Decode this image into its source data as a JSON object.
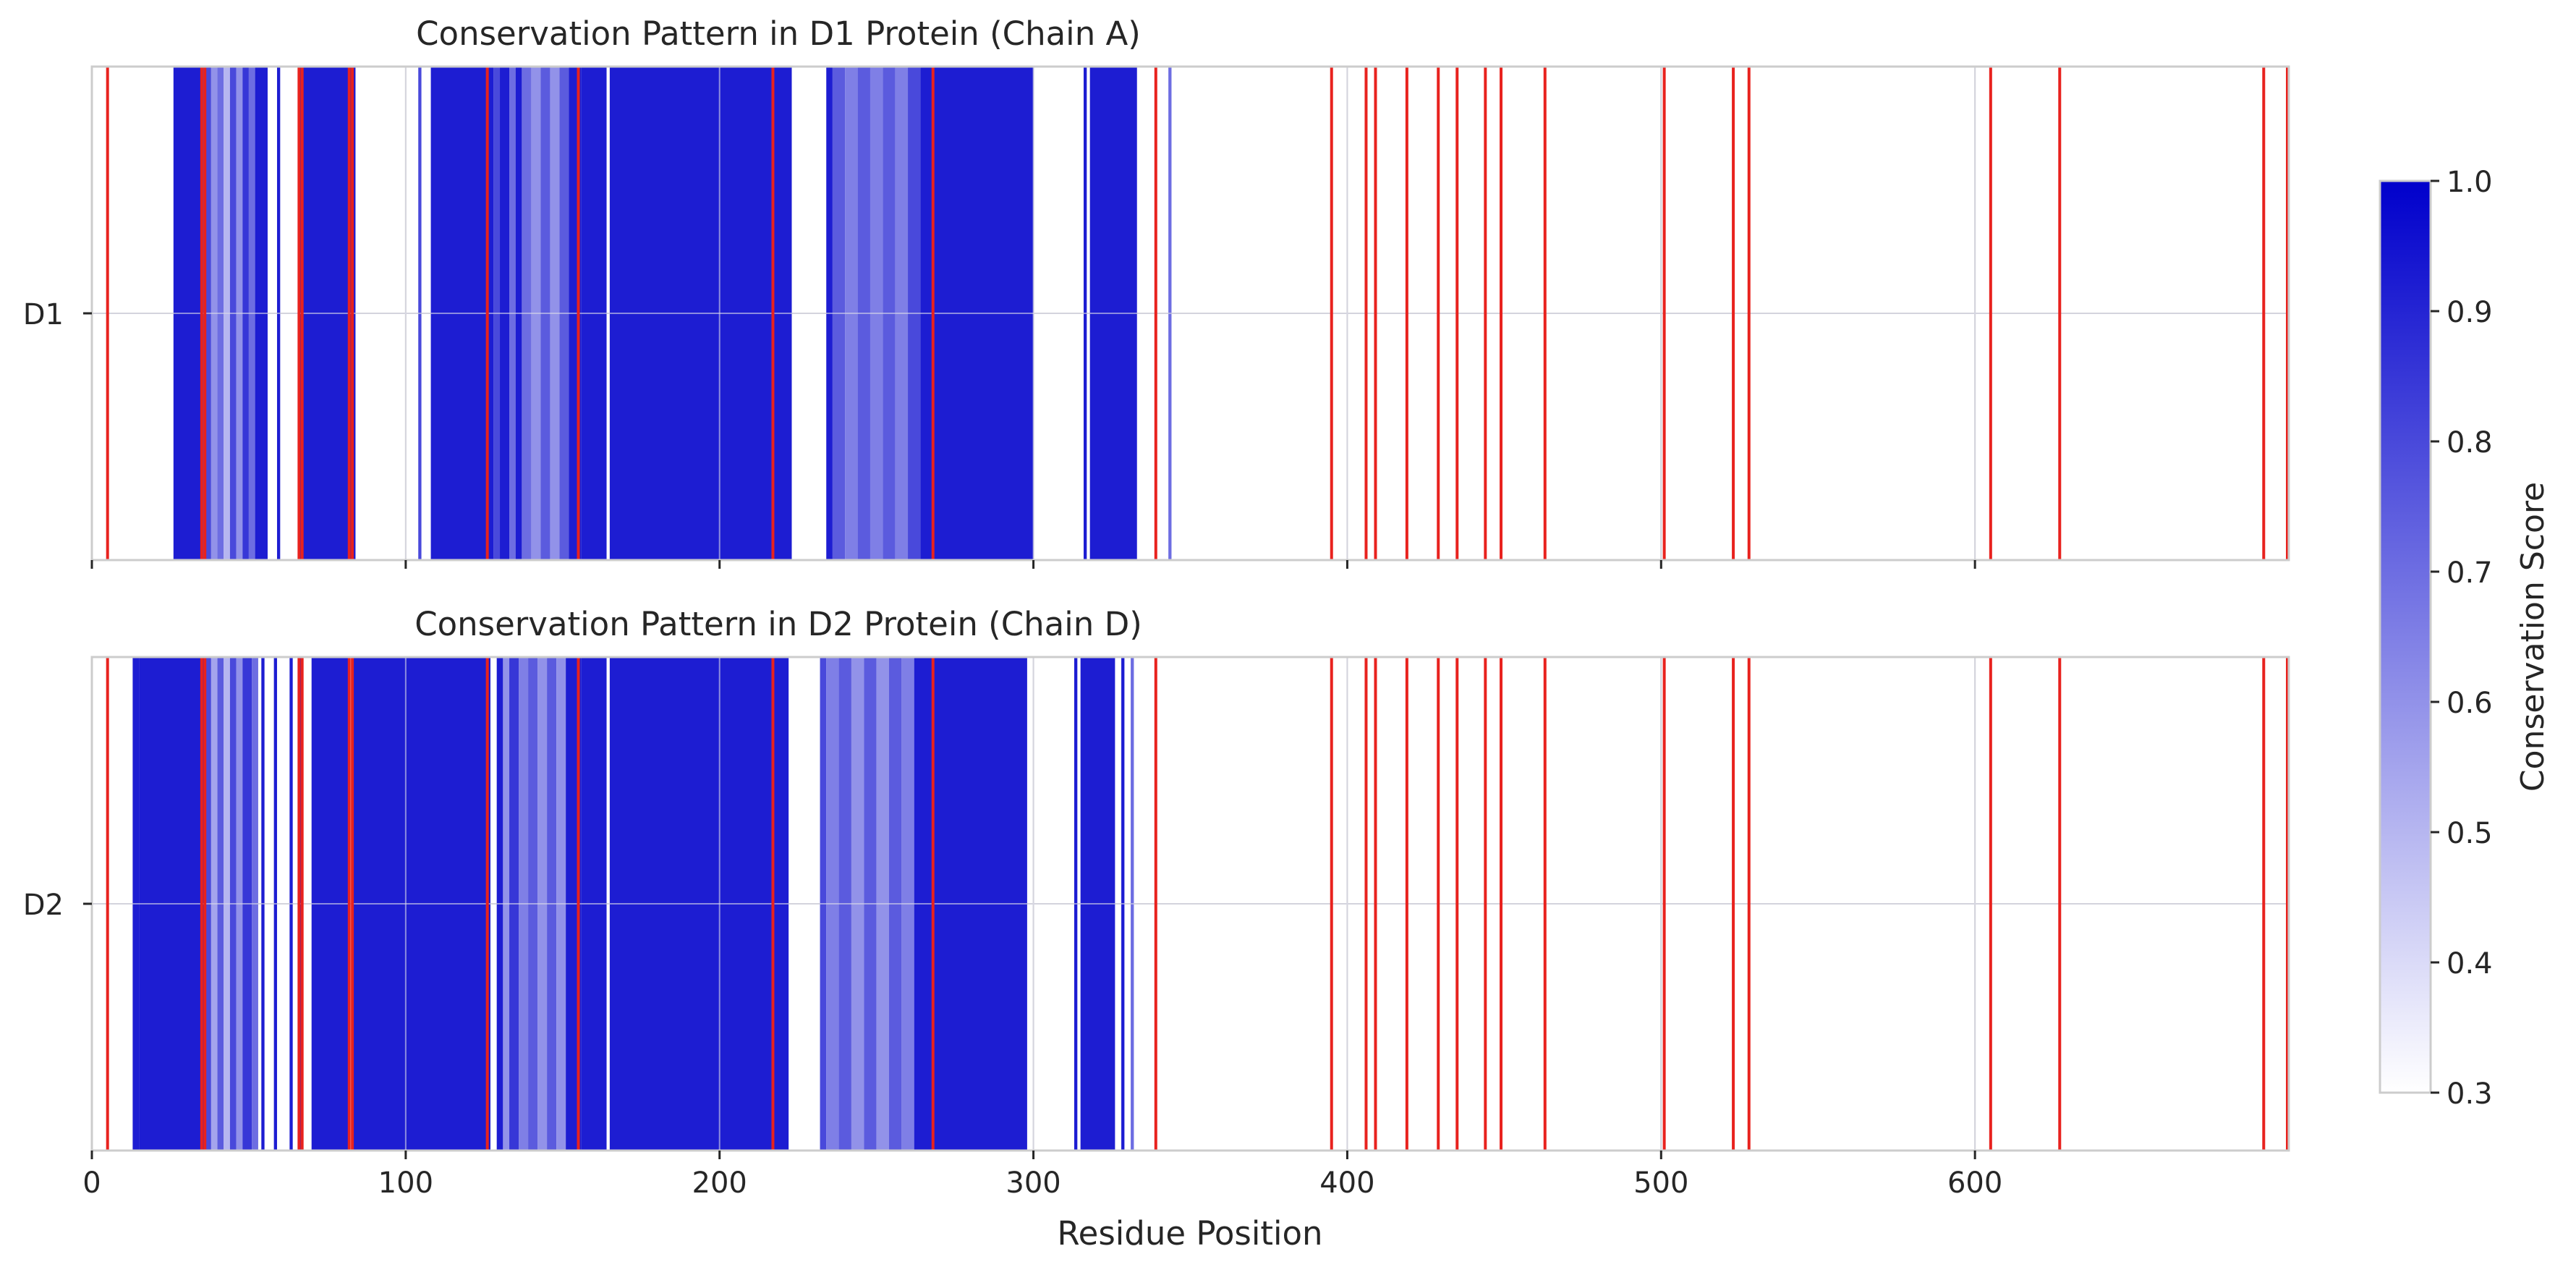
{
  "chart_data": {
    "type": "heatmap",
    "xlabel": "Residue Position",
    "xlim": [
      0,
      700
    ],
    "xticks": [
      0,
      100,
      200,
      300,
      400,
      500,
      600
    ],
    "grid": true,
    "panels": [
      {
        "title": "Conservation Pattern in D1 Protein (Chain A)",
        "row_label": "D1",
        "segments": [
          [
            26,
            35,
            0.92
          ],
          [
            35,
            38,
            0.8
          ],
          [
            38,
            40,
            0.6
          ],
          [
            40,
            42,
            0.7
          ],
          [
            42,
            44,
            0.5
          ],
          [
            44,
            46,
            0.8
          ],
          [
            46,
            48,
            0.6
          ],
          [
            48,
            50,
            0.85
          ],
          [
            50,
            52,
            0.7
          ],
          [
            52,
            56,
            0.92
          ],
          [
            59,
            60,
            0.92
          ],
          [
            66,
            67,
            0.92
          ],
          [
            67,
            84,
            0.92
          ],
          [
            104,
            105,
            0.8
          ],
          [
            108,
            128,
            0.92
          ],
          [
            128,
            130,
            0.8
          ],
          [
            130,
            133,
            0.92
          ],
          [
            133,
            135,
            0.7
          ],
          [
            135,
            137,
            0.92
          ],
          [
            137,
            140,
            0.7
          ],
          [
            140,
            143,
            0.6
          ],
          [
            143,
            146,
            0.75
          ],
          [
            146,
            149,
            0.6
          ],
          [
            149,
            152,
            0.75
          ],
          [
            152,
            156,
            0.92
          ],
          [
            156,
            164,
            0.92
          ],
          [
            165,
            223,
            0.92
          ],
          [
            234,
            236,
            0.92
          ],
          [
            236,
            240,
            0.75
          ],
          [
            240,
            244,
            0.65
          ],
          [
            244,
            248,
            0.75
          ],
          [
            248,
            252,
            0.65
          ],
          [
            252,
            256,
            0.75
          ],
          [
            256,
            260,
            0.65
          ],
          [
            260,
            264,
            0.8
          ],
          [
            264,
            300,
            0.92
          ],
          [
            316,
            317,
            0.92
          ],
          [
            318,
            333,
            0.92
          ],
          [
            343,
            344,
            0.7
          ]
        ],
        "red_lines": [
          5,
          35,
          36,
          66,
          67,
          82,
          83,
          126,
          155,
          217,
          268,
          339,
          395,
          406,
          409,
          419,
          429,
          435,
          444,
          449,
          463,
          501,
          523,
          528,
          605,
          627,
          692,
          700
        ]
      },
      {
        "title": "Conservation Pattern in D2 Protein (Chain D)",
        "row_label": "D2",
        "segments": [
          [
            13,
            15,
            0.92
          ],
          [
            15,
            36,
            0.92
          ],
          [
            36,
            38,
            0.8
          ],
          [
            38,
            40,
            0.55
          ],
          [
            40,
            42,
            0.75
          ],
          [
            42,
            44,
            0.5
          ],
          [
            44,
            46,
            0.8
          ],
          [
            46,
            48,
            0.6
          ],
          [
            48,
            51,
            0.85
          ],
          [
            51,
            53,
            0.7
          ],
          [
            54,
            55,
            0.92
          ],
          [
            58,
            59,
            0.92
          ],
          [
            63,
            64,
            0.92
          ],
          [
            66,
            67,
            0.92
          ],
          [
            70,
            82,
            0.92
          ],
          [
            83,
            127,
            0.92
          ],
          [
            129,
            131,
            0.92
          ],
          [
            131,
            133,
            0.6
          ],
          [
            133,
            136,
            0.85
          ],
          [
            136,
            139,
            0.65
          ],
          [
            139,
            142,
            0.75
          ],
          [
            142,
            145,
            0.6
          ],
          [
            145,
            148,
            0.75
          ],
          [
            148,
            151,
            0.6
          ],
          [
            151,
            156,
            0.92
          ],
          [
            156,
            164,
            0.92
          ],
          [
            165,
            222,
            0.92
          ],
          [
            232,
            234,
            0.8
          ],
          [
            234,
            238,
            0.65
          ],
          [
            238,
            242,
            0.75
          ],
          [
            242,
            246,
            0.6
          ],
          [
            246,
            250,
            0.75
          ],
          [
            250,
            254,
            0.6
          ],
          [
            254,
            258,
            0.75
          ],
          [
            258,
            262,
            0.65
          ],
          [
            262,
            298,
            0.92
          ],
          [
            313,
            314,
            0.92
          ],
          [
            315,
            326,
            0.92
          ],
          [
            328,
            329,
            0.92
          ],
          [
            331,
            332,
            0.7
          ]
        ],
        "red_lines": [
          5,
          35,
          36,
          66,
          67,
          82,
          83,
          126,
          155,
          217,
          268,
          339,
          395,
          406,
          409,
          419,
          429,
          435,
          444,
          449,
          463,
          501,
          523,
          528,
          605,
          627,
          692,
          700
        ]
      }
    ],
    "colorbar": {
      "label": "Conservation Score",
      "range": [
        0.3,
        1.0
      ],
      "ticks": [
        "0.3",
        "0.4",
        "0.5",
        "0.6",
        "0.7",
        "0.8",
        "0.9",
        "1.0"
      ],
      "low_color": "#ffffff",
      "high_color": "#0000cc"
    },
    "colors": {
      "red_line": "#e8221e",
      "grid": "#cccccc",
      "frame": "#cccccc"
    }
  }
}
